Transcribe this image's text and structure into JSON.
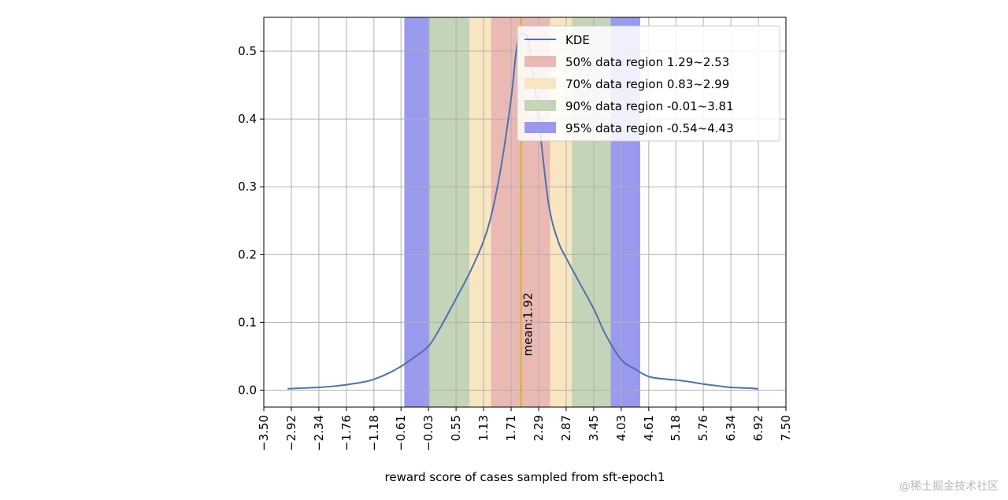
{
  "chart_data": {
    "type": "line",
    "title": "",
    "xlabel": "reward score of cases sampled from sft-epoch1",
    "ylabel": "",
    "xlim": [
      -3.5,
      7.5
    ],
    "ylim": [
      -0.025,
      0.55
    ],
    "xticks": [
      -3.5,
      -2.92,
      -2.34,
      -1.76,
      -1.18,
      -0.61,
      -0.03,
      0.55,
      1.13,
      1.71,
      2.29,
      2.87,
      3.45,
      4.03,
      4.61,
      5.18,
      5.76,
      6.34,
      6.92,
      7.5
    ],
    "xtick_labels": [
      "−3.50",
      "−2.92",
      "−2.34",
      "−1.76",
      "−1.18",
      "−0.61",
      "−0.03",
      "0.55",
      "1.13",
      "1.71",
      "2.29",
      "2.87",
      "3.45",
      "4.03",
      "4.61",
      "5.18",
      "5.76",
      "6.34",
      "6.92",
      "7.50"
    ],
    "yticks": [
      0.0,
      0.1,
      0.2,
      0.3,
      0.4,
      0.5
    ],
    "ytick_labels": [
      "0.0",
      "0.1",
      "0.2",
      "0.3",
      "0.4",
      "0.5"
    ],
    "grid": true,
    "legend_position": "top-right",
    "series": [
      {
        "name": "KDE",
        "color": "#4c72b0",
        "x": [
          -3.0,
          -2.7,
          -2.34,
          -2.0,
          -1.76,
          -1.4,
          -1.18,
          -0.9,
          -0.61,
          -0.3,
          -0.03,
          0.2,
          0.55,
          0.85,
          1.13,
          1.3,
          1.5,
          1.71,
          1.85,
          2.0,
          2.1,
          2.29,
          2.5,
          2.7,
          2.87,
          3.1,
          3.45,
          3.7,
          4.03,
          4.3,
          4.61,
          5.0,
          5.18,
          5.5,
          5.76,
          6.1,
          6.34,
          6.7,
          6.92
        ],
        "y": [
          0.002,
          0.003,
          0.004,
          0.006,
          0.008,
          0.012,
          0.016,
          0.024,
          0.035,
          0.05,
          0.065,
          0.09,
          0.135,
          0.175,
          0.22,
          0.26,
          0.33,
          0.43,
          0.515,
          0.525,
          0.505,
          0.4,
          0.275,
          0.22,
          0.195,
          0.165,
          0.12,
          0.082,
          0.045,
          0.032,
          0.02,
          0.016,
          0.015,
          0.012,
          0.009,
          0.006,
          0.004,
          0.003,
          0.002
        ]
      }
    ],
    "regions": [
      {
        "label": "95% data region -0.54~4.43",
        "start": -0.54,
        "end": 4.43,
        "color": "#9999ee"
      },
      {
        "label": "90% data region -0.01~3.81",
        "start": -0.01,
        "end": 3.81,
        "color": "#c3d4b8"
      },
      {
        "label": "70% data region 0.83~2.99",
        "start": 0.83,
        "end": 2.99,
        "color": "#f7e6bf"
      },
      {
        "label": "50% data region 1.29~2.53",
        "start": 1.29,
        "end": 2.53,
        "color": "#ebb9b4"
      }
    ],
    "legend": [
      {
        "label": "KDE",
        "kind": "line",
        "color": "#4c72b0"
      },
      {
        "label": "50% data region 1.29~2.53",
        "kind": "patch",
        "color": "#ebb9b4"
      },
      {
        "label": "70% data region 0.83~2.99",
        "kind": "patch",
        "color": "#f7e6bf"
      },
      {
        "label": "90% data region -0.01~3.81",
        "kind": "patch",
        "color": "#c3d4b8"
      },
      {
        "label": "95% data region -0.54~4.43",
        "kind": "patch",
        "color": "#9999ee"
      }
    ],
    "mean": {
      "value": 1.92,
      "label": "mean:1.92",
      "color": "#c8b400"
    }
  },
  "watermark": "@稀土掘金技术社区"
}
